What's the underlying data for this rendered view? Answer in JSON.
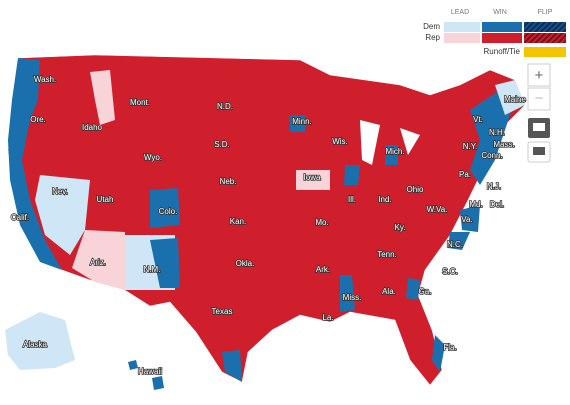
{
  "legend": {
    "headers": [
      "LEAD",
      "WIN",
      "FLIP"
    ],
    "rows": [
      "Dem",
      "Rep"
    ],
    "runoff": "Runoff/Tie"
  },
  "controls": {
    "zoom_in": "+",
    "zoom_out": "−"
  },
  "states": [
    "Wash.",
    "Ore.",
    "Idaho",
    "Mont.",
    "N.D.",
    "Minn.",
    "Wis.",
    "Mich.",
    "S.D.",
    "Wyo.",
    "Nev.",
    "Calif.",
    "Utah",
    "Colo.",
    "Neb.",
    "Iowa",
    "Ill.",
    "Ind.",
    "Ohio",
    "Pa.",
    "N.Y.",
    "Vt.",
    "N.H.",
    "Maine",
    "Mass.",
    "Conn.",
    "N.J.",
    "Md.",
    "Del.",
    "W.Va.",
    "Va.",
    "Ky.",
    "Kan.",
    "Mo.",
    "Okla.",
    "Ark.",
    "Tenn.",
    "N.C.",
    "S.C.",
    "Ga.",
    "Ala.",
    "Miss.",
    "La.",
    "Texas",
    "N.M.",
    "Ariz.",
    "Fla.",
    "Alaska",
    "Hawaii"
  ]
}
